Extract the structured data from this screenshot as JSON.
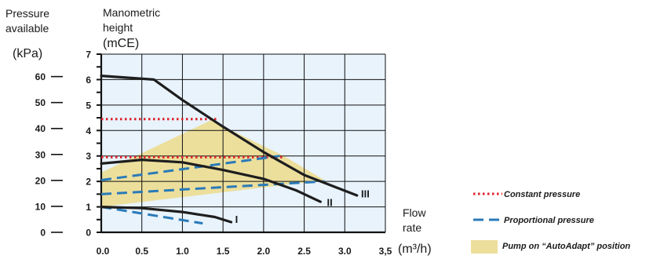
{
  "chart_data": {
    "type": "line",
    "axes": {
      "left_label_lines": [
        "Pressure",
        "available"
      ],
      "left_unit": "(kPa)",
      "left_ticks": [
        0,
        10,
        20,
        30,
        40,
        50,
        60
      ],
      "right_label_lines": [
        "Manometric",
        "height"
      ],
      "right_unit": "(mCE)",
      "right_ticks": [
        0,
        1,
        2,
        3,
        4,
        5,
        6,
        7
      ],
      "x_label_lines": [
        "Flow",
        "rate"
      ],
      "x_unit": "(m³/h)",
      "x_ticks": [
        "0.0",
        "0.5",
        "1.0",
        "1.5",
        "2.0",
        "2.5",
        "3.0",
        "3,5"
      ],
      "xlim": [
        0,
        3.5
      ],
      "ylim": [
        0,
        7
      ]
    },
    "series": [
      {
        "name": "III",
        "style": "solid",
        "points": [
          [
            0,
            6.15
          ],
          [
            0.65,
            6.0
          ],
          [
            1.0,
            5.2
          ],
          [
            1.5,
            4.15
          ],
          [
            2.0,
            3.15
          ],
          [
            2.5,
            2.25
          ],
          [
            3.15,
            1.45
          ]
        ]
      },
      {
        "name": "II",
        "style": "solid",
        "points": [
          [
            0,
            2.7
          ],
          [
            0.5,
            2.85
          ],
          [
            1.0,
            2.75
          ],
          [
            1.5,
            2.45
          ],
          [
            2.0,
            2.1
          ],
          [
            2.4,
            1.65
          ],
          [
            2.7,
            1.2
          ]
        ]
      },
      {
        "name": "I",
        "style": "solid",
        "points": [
          [
            0,
            1.0
          ],
          [
            0.5,
            0.95
          ],
          [
            1.0,
            0.8
          ],
          [
            1.4,
            0.6
          ],
          [
            1.6,
            0.4
          ]
        ]
      },
      {
        "name": "",
        "style": "dotted",
        "points": [
          [
            0,
            4.45
          ],
          [
            1.45,
            4.45
          ]
        ]
      },
      {
        "name": "",
        "style": "dotted",
        "points": [
          [
            0,
            2.95
          ],
          [
            2.25,
            2.95
          ]
        ]
      },
      {
        "name": "",
        "style": "dashed",
        "points": [
          [
            0,
            2.05
          ],
          [
            2.2,
            3.0
          ]
        ]
      },
      {
        "name": "",
        "style": "dashed",
        "points": [
          [
            0,
            1.5
          ],
          [
            2.75,
            2.0
          ]
        ]
      },
      {
        "name": "",
        "style": "dashed",
        "points": [
          [
            0,
            1.0
          ],
          [
            1.25,
            0.35
          ]
        ]
      }
    ],
    "curve_labels": [
      {
        "text": "III",
        "x": 3.2,
        "y": 1.5
      },
      {
        "text": "II",
        "x": 2.78,
        "y": 1.15
      },
      {
        "text": "I",
        "x": 1.65,
        "y": 0.5
      }
    ],
    "autoadapt_region": [
      [
        0,
        1.0
      ],
      [
        0,
        2.35
      ],
      [
        1.35,
        4.4
      ],
      [
        2.25,
        3.0
      ],
      [
        2.75,
        2.05
      ]
    ],
    "legend": [
      {
        "style": "dotted",
        "label": "Constant pressure"
      },
      {
        "style": "dashed",
        "label": "Proportional pressure"
      },
      {
        "style": "fill",
        "label": "Pump on “AutoAdapt” position"
      }
    ],
    "colors": {
      "plot_bg": "#e8f3fc",
      "grid": "#111111",
      "curve": "#1e1e1e",
      "constant": "#e0202a",
      "proportional": "#2a7ab8",
      "autoadapt": "#ecdf9c"
    }
  }
}
